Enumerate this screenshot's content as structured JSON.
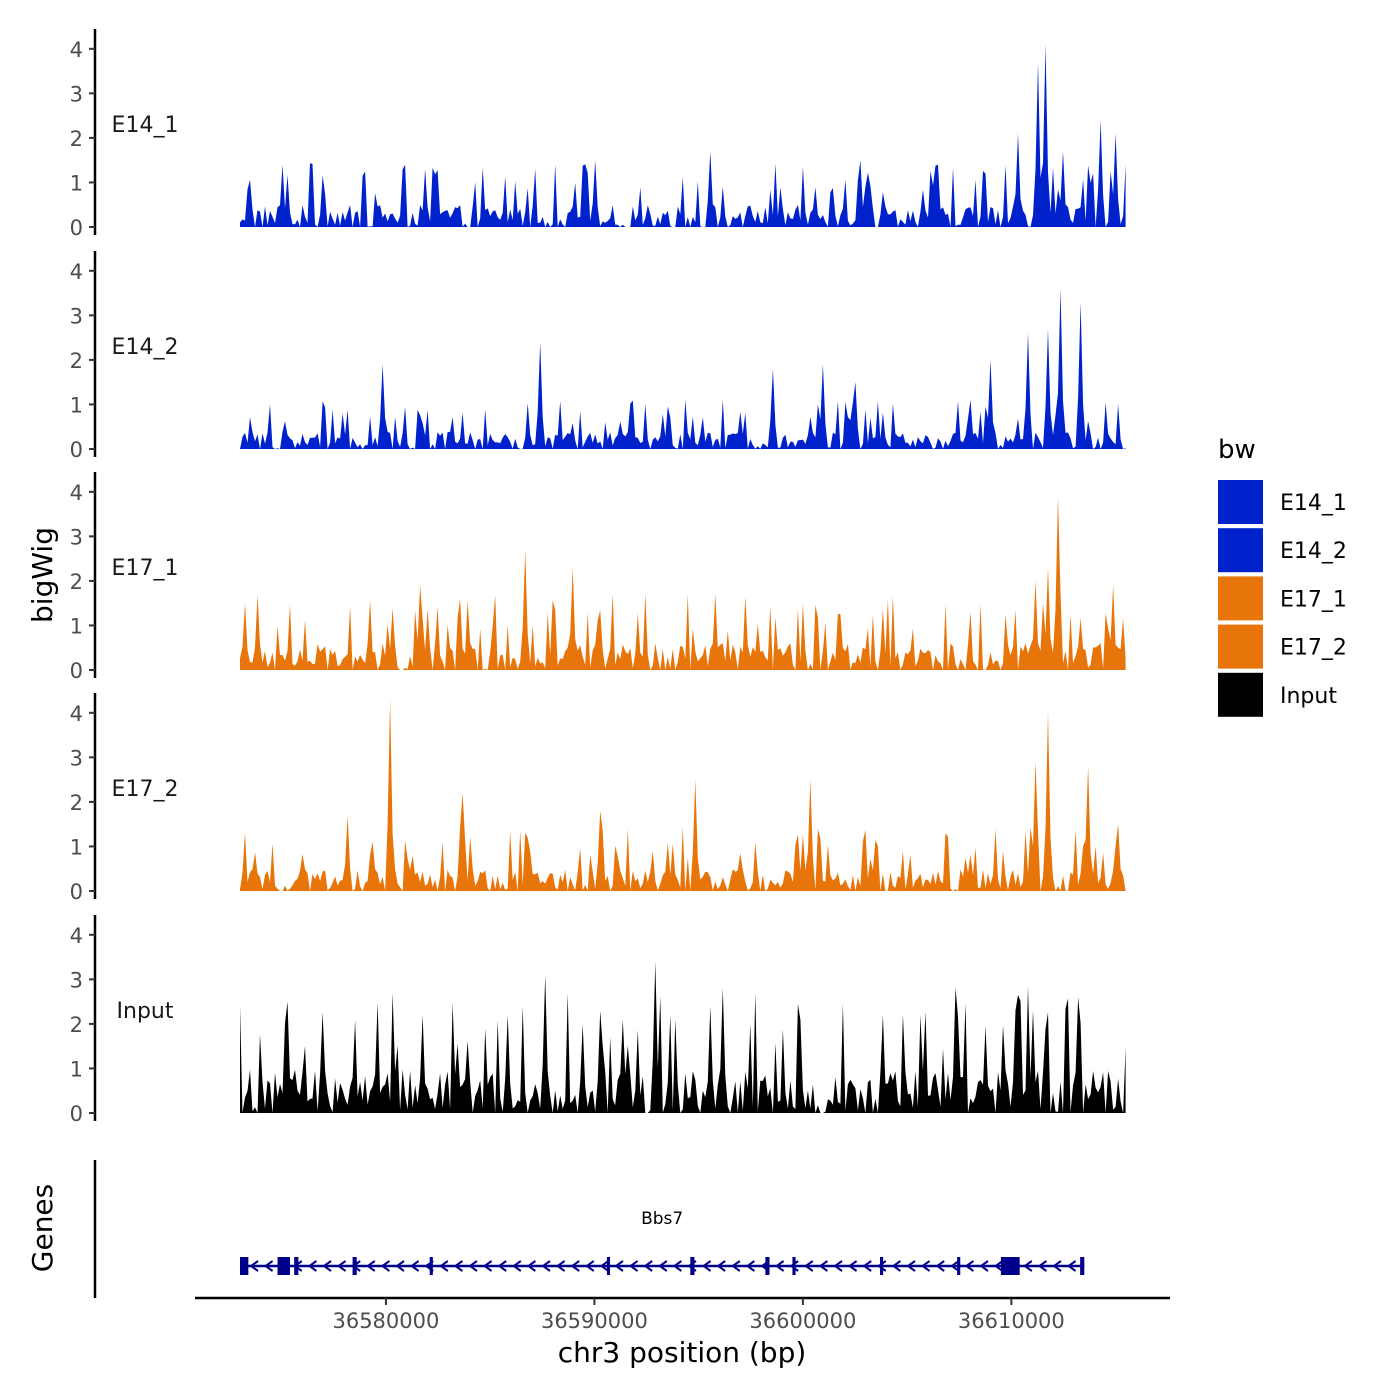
{
  "chart_data": {
    "type": "area",
    "ylabel": "bigWig",
    "xlabel": "chr3 position (bp)",
    "x_range": [
      36573000,
      36615500
    ],
    "x_ticks": [
      36580000,
      36590000,
      36600000,
      36610000
    ],
    "x_tick_labels": [
      "36580000",
      "36590000",
      "36600000",
      "36610000"
    ],
    "ylim": [
      0,
      4.4
    ],
    "y_ticks": [
      0,
      1,
      2,
      3,
      4
    ],
    "y_tick_labels": [
      "0",
      "1",
      "2",
      "3",
      "4"
    ],
    "legend_title": "bw",
    "legend": [
      {
        "label": "E14_1",
        "color": "#0022CC"
      },
      {
        "label": "E14_2",
        "color": "#0022CC"
      },
      {
        "label": "E17_1",
        "color": "#E8750A"
      },
      {
        "label": "E17_2",
        "color": "#E8750A"
      },
      {
        "label": "Input",
        "color": "#000000"
      }
    ],
    "tracks_x_start": 36573000,
    "tracks_x_step": 120,
    "series": [
      {
        "name": "E14_1",
        "color": "#0022CC",
        "peaks": [
          [
            36611600,
            4.1
          ],
          [
            36611300,
            3.7
          ],
          [
            36610300,
            2.1
          ],
          [
            36614300,
            2.4
          ],
          [
            36615000,
            2.1
          ],
          [
            36612500,
            1.7
          ],
          [
            36602800,
            1.5
          ],
          [
            36590000,
            1.5
          ],
          [
            36595600,
            1.7
          ],
          [
            36575000,
            1.4
          ]
        ],
        "baseline": 0.45
      },
      {
        "name": "E14_2",
        "color": "#0022CC",
        "peaks": [
          [
            36612400,
            3.6
          ],
          [
            36613300,
            3.3
          ],
          [
            36610800,
            2.6
          ],
          [
            36611800,
            2.7
          ],
          [
            36609000,
            2.0
          ],
          [
            36587400,
            2.4
          ],
          [
            36579800,
            1.9
          ],
          [
            36602500,
            1.5
          ],
          [
            36601000,
            1.9
          ],
          [
            36598500,
            1.8
          ]
        ],
        "baseline": 0.35
      },
      {
        "name": "E17_1",
        "color": "#E8750A",
        "peaks": [
          [
            36612200,
            3.9
          ],
          [
            36611700,
            2.3
          ],
          [
            36586700,
            2.7
          ],
          [
            36588900,
            2.3
          ],
          [
            36581600,
            1.9
          ],
          [
            36595800,
            1.7
          ],
          [
            36614900,
            1.9
          ],
          [
            36583600,
            1.6
          ],
          [
            36573200,
            1.5
          ],
          [
            36611200,
            2.0
          ]
        ],
        "baseline": 0.55
      },
      {
        "name": "E17_2",
        "color": "#E8750A",
        "peaks": [
          [
            36580200,
            4.3
          ],
          [
            36611700,
            4.0
          ],
          [
            36611200,
            2.9
          ],
          [
            36613700,
            2.8
          ],
          [
            36594800,
            2.5
          ],
          [
            36600300,
            2.5
          ],
          [
            36583700,
            2.2
          ],
          [
            36578100,
            1.7
          ],
          [
            36615100,
            1.5
          ],
          [
            36590300,
            1.8
          ]
        ],
        "baseline": 0.45
      },
      {
        "name": "Input",
        "color": "#000000",
        "peaks": [
          [
            36592900,
            3.4
          ],
          [
            36587600,
            3.1
          ],
          [
            36596200,
            2.8
          ],
          [
            36613200,
            2.6
          ],
          [
            36575300,
            2.5
          ],
          [
            36581800,
            2.2
          ],
          [
            36585800,
            2.2
          ],
          [
            36603800,
            2.2
          ],
          [
            36611000,
            2.3
          ],
          [
            36589400,
            2.0
          ]
        ],
        "baseline": 0.9
      }
    ],
    "genes_panel": {
      "ylabel": "Genes",
      "gene": "Bbs7",
      "start": 36573000,
      "end": 36613500,
      "strand": "-",
      "color": "#00008B",
      "exons": [
        [
          36573000,
          36573400
        ],
        [
          36574800,
          36575400
        ],
        [
          36575600,
          36575800
        ],
        [
          36578400,
          36578600
        ],
        [
          36582100,
          36582250
        ],
        [
          36590600,
          36590750
        ],
        [
          36594600,
          36594800
        ],
        [
          36598200,
          36598400
        ],
        [
          36599500,
          36599650
        ],
        [
          36603700,
          36603850
        ],
        [
          36607400,
          36607550
        ],
        [
          36609500,
          36610400
        ],
        [
          36613300,
          36613500
        ]
      ]
    }
  }
}
